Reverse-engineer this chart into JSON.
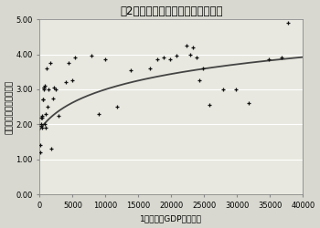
{
  "title": "図2　所得水準と知的財産権の保護",
  "xlabel": "1人当たりGDP（ドル）",
  "ylabel": "知的財産権の保護の程度",
  "xlim": [
    0,
    40000
  ],
  "ylim": [
    0.0,
    5.0
  ],
  "xticks": [
    0,
    5000,
    10000,
    15000,
    20000,
    25000,
    30000,
    35000,
    40000
  ],
  "yticks": [
    0.0,
    1.0,
    2.0,
    3.0,
    4.0,
    5.0
  ],
  "scatter_points": [
    [
      80,
      1.4
    ],
    [
      120,
      1.2
    ],
    [
      180,
      2.0
    ],
    [
      220,
      1.95
    ],
    [
      280,
      2.2
    ],
    [
      320,
      2.2
    ],
    [
      380,
      2.25
    ],
    [
      420,
      1.9
    ],
    [
      460,
      2.7
    ],
    [
      520,
      2.7
    ],
    [
      560,
      3.05
    ],
    [
      600,
      3.05
    ],
    [
      650,
      3.0
    ],
    [
      700,
      3.1
    ],
    [
      750,
      2.0
    ],
    [
      850,
      1.9
    ],
    [
      950,
      2.3
    ],
    [
      1050,
      3.6
    ],
    [
      1150,
      2.5
    ],
    [
      1350,
      3.0
    ],
    [
      1550,
      3.75
    ],
    [
      1750,
      1.3
    ],
    [
      1950,
      2.75
    ],
    [
      2150,
      3.05
    ],
    [
      2450,
      3.0
    ],
    [
      2900,
      2.25
    ],
    [
      3900,
      3.2
    ],
    [
      4400,
      3.75
    ],
    [
      4900,
      3.25
    ],
    [
      5400,
      3.9
    ],
    [
      7800,
      3.95
    ],
    [
      8900,
      2.3
    ],
    [
      9900,
      3.85
    ],
    [
      11800,
      2.5
    ],
    [
      13800,
      3.55
    ],
    [
      16800,
      3.6
    ],
    [
      17800,
      3.85
    ],
    [
      18800,
      3.9
    ],
    [
      19800,
      3.85
    ],
    [
      20800,
      3.95
    ],
    [
      22300,
      4.25
    ],
    [
      22800,
      4.0
    ],
    [
      23300,
      4.2
    ],
    [
      23800,
      3.9
    ],
    [
      24300,
      3.25
    ],
    [
      24800,
      3.6
    ],
    [
      25800,
      2.55
    ],
    [
      27800,
      3.0
    ],
    [
      29800,
      3.0
    ],
    [
      31800,
      2.6
    ],
    [
      34800,
      3.85
    ],
    [
      36800,
      3.9
    ],
    [
      37800,
      4.9
    ]
  ],
  "curve_color": "#444444",
  "scatter_color": "#111111",
  "background_color": "#d8d8d0",
  "plot_bg_color": "#e8e8e0",
  "grid_color": "#ffffff",
  "title_fontsize": 8.5,
  "axis_fontsize": 6.5,
  "tick_fontsize": 6,
  "log_scale": 0.00035,
  "curve_ymin": 1.85,
  "curve_ymax": 3.92
}
